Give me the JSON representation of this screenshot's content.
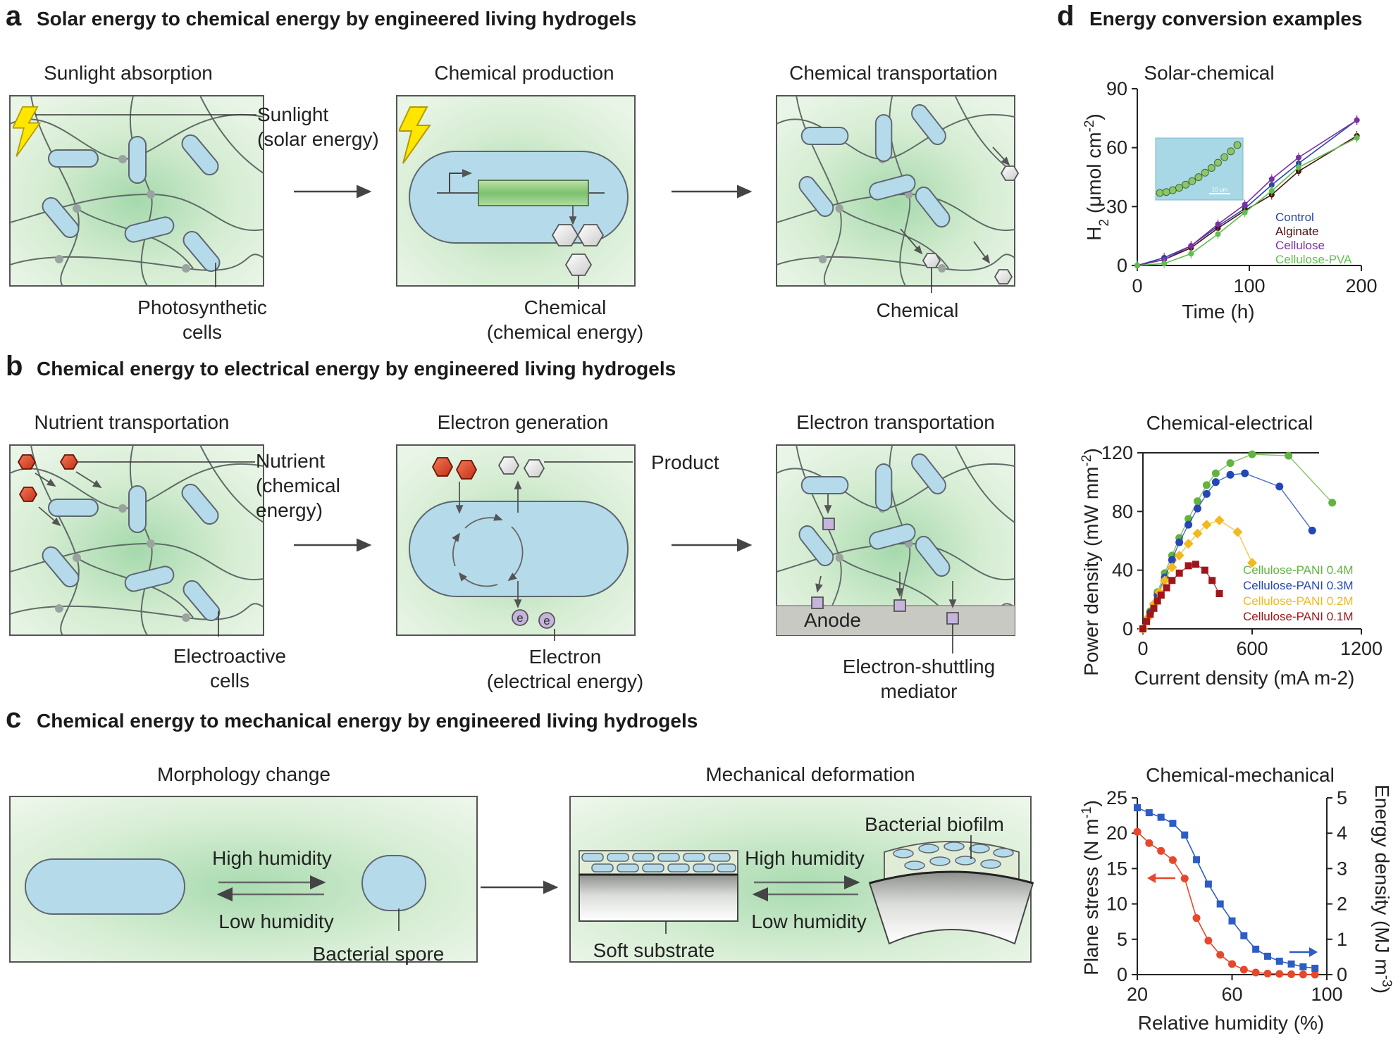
{
  "panel_a": {
    "letter": "a",
    "title": "Solar energy to chemical energy by engineered living hydrogels",
    "stage1": {
      "title": "Sunlight absorption",
      "label_sun_1": "Sunlight",
      "label_sun_2": "(solar energy)",
      "label_cells_1": "Photosynthetic",
      "label_cells_2": "cells"
    },
    "stage2": {
      "title": "Chemical production",
      "label_1": "Chemical",
      "label_2": "(chemical energy)"
    },
    "stage3": {
      "title": "Chemical transportation",
      "label_1": "Chemical"
    }
  },
  "panel_b": {
    "letter": "b",
    "title": "Chemical energy to electrical energy by engineered living hydrogels",
    "stage1": {
      "title": "Nutrient transportation",
      "label_n_1": "Nutrient",
      "label_n_2": "(chemical",
      "label_n_3": "energy)",
      "label_cells_1": "Electroactive",
      "label_cells_2": "cells"
    },
    "stage2": {
      "title": "Electron generation",
      "label_product": "Product",
      "electron_symbol": "e",
      "label_1": "Electron",
      "label_2": "(electrical energy)"
    },
    "stage3": {
      "title": "Electron transportation",
      "label_anode": "Anode",
      "label_1": "Electron-shuttling",
      "label_2": "mediator"
    }
  },
  "panel_c": {
    "letter": "c",
    "title": "Chemical energy to mechanical energy by engineered living hydrogels",
    "stage1": {
      "title": "Morphology change",
      "label_high": "High humidity",
      "label_low": "Low humidity",
      "label_spore": "Bacterial spore"
    },
    "stage2": {
      "title": "Mechanical deformation",
      "label_biofilm": "Bacterial biofilm",
      "label_high": "High humidity",
      "label_low": "Low humidity",
      "label_substrate": "Soft substrate"
    }
  },
  "panel_d": {
    "letter": "d",
    "title": "Energy conversion examples",
    "inset_scale": "10 μm"
  },
  "colors": {
    "gel_light": "#e8f4e5",
    "gel_dark": "#9fd5a6",
    "cell": "#b5dbea",
    "bolt": "#ffe600",
    "nutrient": "#e04a2b",
    "mediator": "#c6b4dd",
    "anode": "#c9c9c4"
  },
  "chart_data": [
    {
      "type": "line",
      "title": "Solar-chemical",
      "xlabel": "Time (h)",
      "ylabel": "H2 (μmol cm-2)",
      "ylabel_main": "H",
      "ylabel_sub": "2",
      "ylabel_unit": " (μmol cm",
      "ylabel_exp": "-2",
      "ylabel_close": ")",
      "xlim": [
        0,
        200
      ],
      "ylim": [
        0,
        90
      ],
      "xticks": [
        "0",
        "100",
        "200"
      ],
      "yticks": [
        "0",
        "30",
        "60",
        "90"
      ],
      "legend_position": "bottom-right",
      "x": [
        0,
        24,
        48,
        72,
        96,
        120,
        144,
        196
      ],
      "series": [
        {
          "name": "Control",
          "color": "#2746a8",
          "values": [
            0,
            4,
            10,
            20,
            29,
            41,
            52,
            74
          ]
        },
        {
          "name": "Alginate",
          "color": "#4a1010",
          "values": [
            0,
            3,
            9,
            19,
            28,
            36,
            48,
            66
          ]
        },
        {
          "name": "Cellulose",
          "color": "#7b2fa4",
          "values": [
            0,
            3,
            10,
            21,
            31,
            44,
            55,
            74
          ]
        },
        {
          "name": "Cellulose-PVA",
          "color": "#5fbf4e",
          "values": [
            0,
            1,
            6,
            16,
            27,
            38,
            50,
            65
          ]
        }
      ]
    },
    {
      "type": "line",
      "title": "Chemical-electrical",
      "xlabel": "Current density (mA m-2)",
      "ylabel": "Power density (mW mm-2)",
      "ylabel_main": "Power density (mW mm",
      "ylabel_exp": "-2",
      "ylabel_close": ")",
      "xlim": [
        0,
        1200
      ],
      "ylim": [
        0,
        120
      ],
      "xticks": [
        "0",
        "600",
        "1200"
      ],
      "yticks": [
        "0",
        "40",
        "80",
        "120"
      ],
      "legend_position": "bottom-right",
      "series": [
        {
          "name": "Cellulose-PANI 0.4M",
          "color": "#63b33f",
          "x": [
            0,
            40,
            80,
            120,
            160,
            200,
            250,
            300,
            350,
            400,
            480,
            600,
            800,
            1040
          ],
          "values": [
            0,
            12,
            25,
            38,
            50,
            62,
            75,
            87,
            98,
            106,
            113,
            119,
            118,
            86
          ]
        },
        {
          "name": "Cellulose-PANI 0.3M",
          "color": "#2446b8",
          "x": [
            0,
            40,
            80,
            120,
            160,
            200,
            250,
            300,
            350,
            400,
            480,
            560,
            750,
            930
          ],
          "values": [
            0,
            11,
            23,
            35,
            47,
            59,
            71,
            82,
            92,
            100,
            105,
            106,
            97,
            67
          ]
        },
        {
          "name": "Cellulose-PANI 0.2M",
          "color": "#f2b81e",
          "x": [
            0,
            30,
            60,
            90,
            120,
            160,
            200,
            250,
            300,
            350,
            420,
            520,
            600
          ],
          "values": [
            0,
            8,
            17,
            25,
            33,
            42,
            50,
            58,
            65,
            71,
            74,
            66,
            45
          ]
        },
        {
          "name": "Cellulose-PANI 0.1M",
          "color": "#a0151a",
          "x": [
            0,
            20,
            40,
            60,
            80,
            100,
            130,
            160,
            200,
            250,
            290,
            340,
            380,
            420
          ],
          "values": [
            0,
            5,
            10,
            14,
            19,
            23,
            28,
            33,
            38,
            43,
            44,
            40,
            33,
            24
          ]
        }
      ]
    },
    {
      "type": "line",
      "title": "Chemical-mechanical",
      "xlabel": "Relative humidity (%)",
      "ylabel": "Plane stress (N m-1)",
      "ylabel_main": "Plane stress (N m",
      "ylabel_exp": "-1",
      "ylabel_close": ")",
      "y2label": "Energy density (MJ m-3)",
      "y2label_main": "Energy density (MJ m",
      "y2label_exp": "-3",
      "y2label_close": ")",
      "xlim": [
        20,
        100
      ],
      "ylim": [
        0,
        25
      ],
      "y2lim": [
        0,
        5
      ],
      "xticks": [
        "20",
        "60",
        "100"
      ],
      "yticks": [
        "0",
        "5",
        "10",
        "15",
        "20",
        "25"
      ],
      "y2ticks": [
        "0",
        "1",
        "2",
        "3",
        "4",
        "5"
      ],
      "series": [
        {
          "name": "",
          "axis": "left",
          "color": "#e8472b",
          "x": [
            20,
            25,
            30,
            35,
            40,
            45,
            50,
            55,
            60,
            65,
            70,
            75,
            80,
            85,
            90,
            95
          ],
          "values": [
            20.2,
            18.6,
            17.5,
            16.2,
            13.6,
            8.0,
            4.8,
            2.8,
            1.5,
            0.7,
            0.3,
            0.15,
            0.1,
            0.05,
            0.02,
            0.0
          ]
        },
        {
          "name": "",
          "axis": "right",
          "color": "#2d5cc5",
          "x": [
            20,
            25,
            30,
            35,
            40,
            45,
            50,
            55,
            60,
            65,
            70,
            75,
            80,
            85,
            90,
            95
          ],
          "values": [
            4.72,
            4.58,
            4.45,
            4.28,
            3.95,
            3.25,
            2.56,
            2.0,
            1.52,
            1.1,
            0.72,
            0.52,
            0.38,
            0.3,
            0.22,
            0.18
          ]
        }
      ]
    }
  ]
}
